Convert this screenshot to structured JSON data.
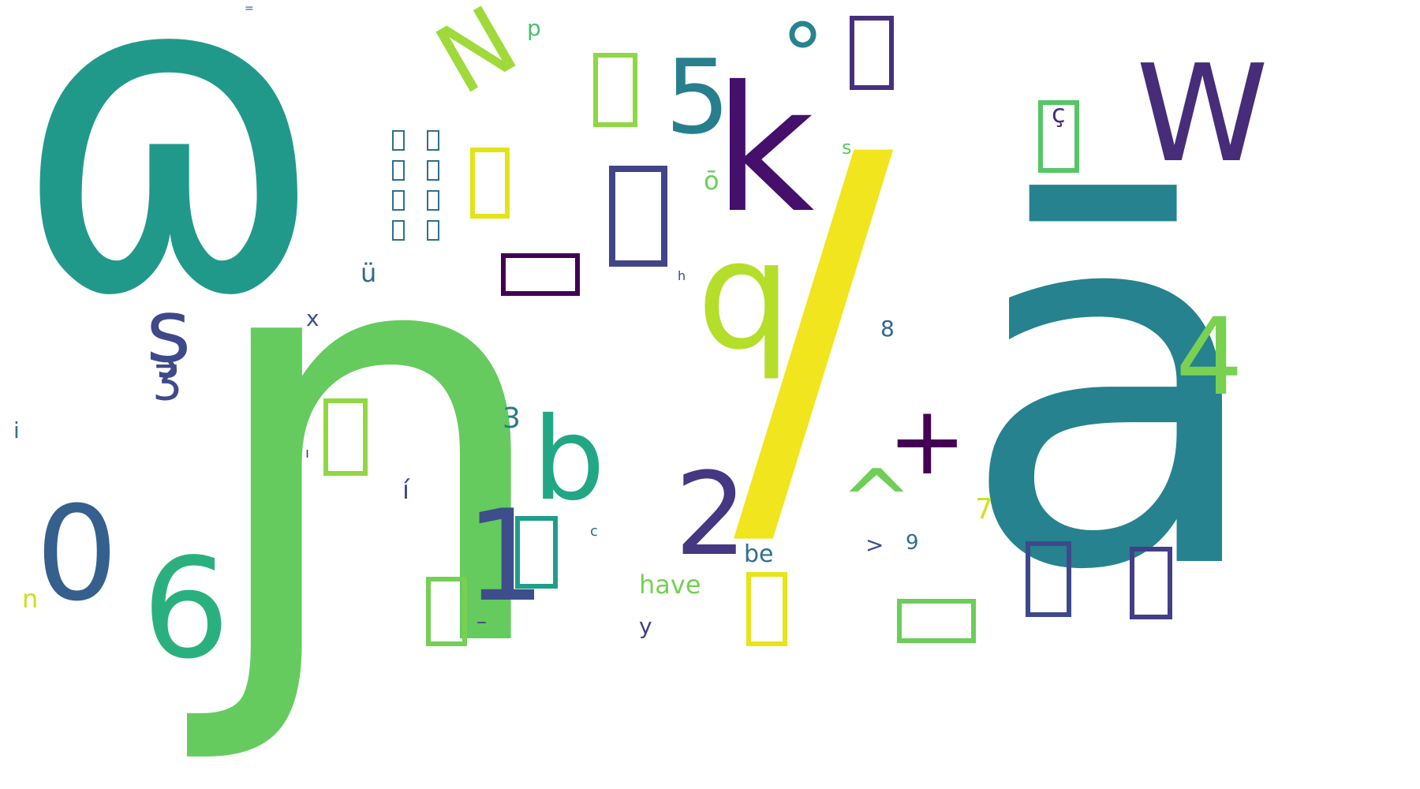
{
  "cloud": {
    "words": [
      {
        "id": "w1",
        "text": "ɷ",
        "color": "#21998a"
      },
      {
        "id": "w2",
        "text": "ɲ",
        "color": "#65cb5e"
      },
      {
        "id": "w3",
        "text": "ā",
        "color": "#26828e"
      },
      {
        "id": "w4",
        "text": "/",
        "color": "#f1e51d"
      },
      {
        "id": "w5",
        "text": "k",
        "color": "#450f6c"
      },
      {
        "id": "w6",
        "text": "W",
        "color": "#472c7a"
      },
      {
        "id": "w7",
        "text": "q",
        "color": "#b5de2b"
      },
      {
        "id": "w8",
        "text": "5",
        "color": "#277f8e"
      },
      {
        "id": "w9",
        "text": "N",
        "color": "#9fda3a"
      },
      {
        "id": "w10",
        "text": "°",
        "color": "#26838f"
      },
      {
        "id": "w11",
        "text": "ş",
        "color": "#3f4889"
      },
      {
        "id": "w12",
        "text": "ʒ",
        "color": "#3e4a89"
      },
      {
        "id": "w13",
        "text": "ü",
        "color": "#2f6b8e"
      },
      {
        "id": "w14",
        "text": "x",
        "color": "#3b528b"
      },
      {
        "id": "w15",
        "text": "b",
        "color": "#22a784"
      },
      {
        "id": "w16",
        "text": "2",
        "color": "#453781"
      },
      {
        "id": "w17",
        "text": "1",
        "color": "#3d4e8a"
      },
      {
        "id": "w18",
        "text": "6",
        "color": "#2ab07f"
      },
      {
        "id": "w19",
        "text": "0",
        "color": "#355f8d"
      },
      {
        "id": "w20",
        "text": "+",
        "color": "#440154"
      },
      {
        "id": "w21",
        "text": "^",
        "color": "#6ece58"
      },
      {
        "id": "w22",
        "text": "4",
        "color": "#7ad151"
      },
      {
        "id": "w23",
        "text": "7",
        "color": "#d2e21b"
      },
      {
        "id": "w24",
        "text": "8",
        "color": "#30688e"
      },
      {
        "id": "w25",
        "text": "9",
        "color": "#2e6e8e"
      },
      {
        "id": "w26",
        "text": ">",
        "color": "#3a548c"
      },
      {
        "id": "w27",
        "text": "be",
        "color": "#2c718e"
      },
      {
        "id": "w28",
        "text": "have",
        "color": "#75d054"
      },
      {
        "id": "w29",
        "text": "y",
        "color": "#433e85"
      },
      {
        "id": "w30",
        "text": "c",
        "color": "#31678e"
      },
      {
        "id": "w31",
        "text": "í",
        "color": "#414487"
      },
      {
        "id": "w32",
        "text": "3",
        "color": "#2a788e"
      },
      {
        "id": "w33",
        "text": "ı",
        "color": "#443983"
      },
      {
        "id": "w34",
        "text": "i",
        "color": "#2c728e"
      },
      {
        "id": "w35",
        "text": "n",
        "color": "#c8e020"
      },
      {
        "id": "w36",
        "text": "–",
        "color": "#3f4788"
      },
      {
        "id": "w37",
        "text": "p",
        "color": "#4ac16d"
      },
      {
        "id": "w38",
        "text": "=",
        "color": "#3b528b"
      },
      {
        "id": "w39",
        "text": "s",
        "color": "#5ec962"
      },
      {
        "id": "w40",
        "text": "ō",
        "color": "#6ccd5a"
      },
      {
        "id": "w41",
        "text": "h",
        "color": "#3e4c8a"
      },
      {
        "id": "w42",
        "text": "ç",
        "color": "#472f7d"
      }
    ],
    "boxes": [
      {
        "id": "b1",
        "color": "#8fd744"
      },
      {
        "id": "b2",
        "color": "#46307e"
      },
      {
        "id": "b3",
        "color": "#e2e418"
      },
      {
        "id": "b4",
        "color": "#414487"
      },
      {
        "id": "b5",
        "color": "#440154"
      },
      {
        "id": "b6",
        "color": "#56c667"
      },
      {
        "id": "b7",
        "color": "#90d743"
      },
      {
        "id": "b8",
        "color": "#1f9e89"
      },
      {
        "id": "b9",
        "color": "#75d054"
      },
      {
        "id": "b10",
        "color": "#e7e419"
      },
      {
        "id": "b11",
        "color": "#6ccd5a"
      },
      {
        "id": "b12",
        "color": "#3e4989"
      },
      {
        "id": "b13",
        "color": "#433e85"
      }
    ],
    "tiny_box_columns": [
      {
        "id": "tc1",
        "color": "#2d708e"
      },
      {
        "id": "tc2",
        "color": "#2d708e"
      }
    ]
  }
}
